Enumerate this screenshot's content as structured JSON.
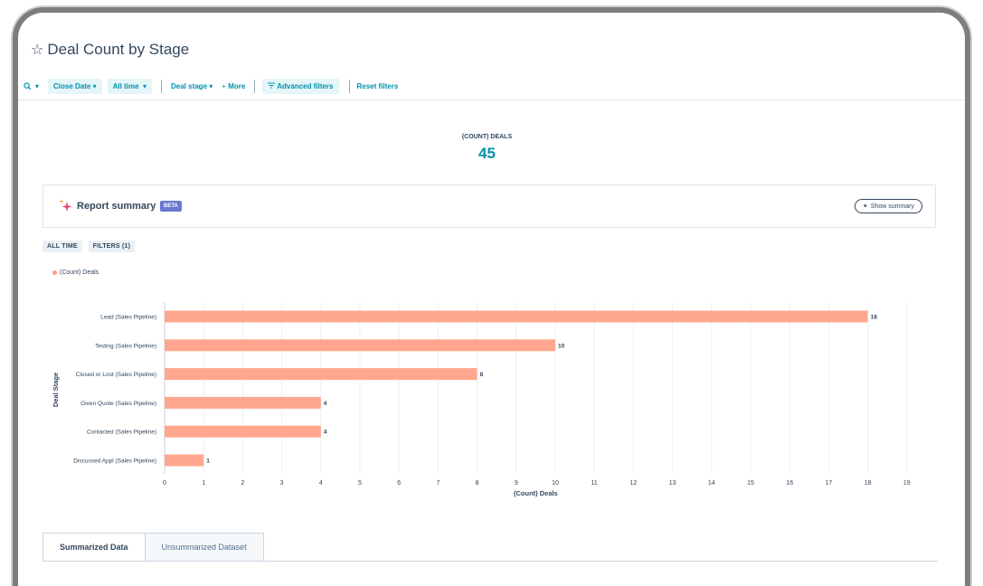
{
  "report": {
    "title": "Deal Count by Stage"
  },
  "filters": {
    "close_date": "Close Date",
    "time_range": "All time",
    "deal_stage": "Deal stage",
    "more": "More",
    "advanced": "Advanced filters",
    "reset": "Reset filters"
  },
  "kpi": {
    "label": "(COUNT) DEALS",
    "value": "45"
  },
  "summary": {
    "label": "Report summary",
    "badge": "BETA",
    "button": "Show summary"
  },
  "tags": [
    "ALL TIME",
    "FILTERS (1)"
  ],
  "legend": {
    "series": "(Count) Deals"
  },
  "chart_data": {
    "type": "bar",
    "orientation": "horizontal",
    "categories": [
      "Lead (Sales Pipeline)",
      "Testing (Sales Pipeline)",
      "Closed or Lost (Sales Pipeline)",
      "Given Quote (Sales Pipeline)",
      "Contacted (Sales Pipeline)",
      "Discussed Appl (Sales Pipeline)"
    ],
    "series": [
      {
        "name": "(Count) Deals",
        "values": [
          18,
          10,
          8,
          4,
          4,
          1
        ]
      }
    ],
    "xlabel": "(Count) Deals",
    "ylabel": "Deal Stage",
    "xlim": [
      0,
      19
    ],
    "xticks": [
      0,
      1,
      2,
      3,
      4,
      5,
      6,
      7,
      8,
      9,
      10,
      11,
      12,
      13,
      14,
      15,
      16,
      17,
      18,
      19
    ],
    "grid": true,
    "data_labels": true,
    "bar_color": "#ffa78e",
    "legend_position": "top-left"
  },
  "tabs": [
    {
      "label": "Summarized Data",
      "active": true
    },
    {
      "label": "Unsummarized Dataset",
      "active": false
    }
  ]
}
